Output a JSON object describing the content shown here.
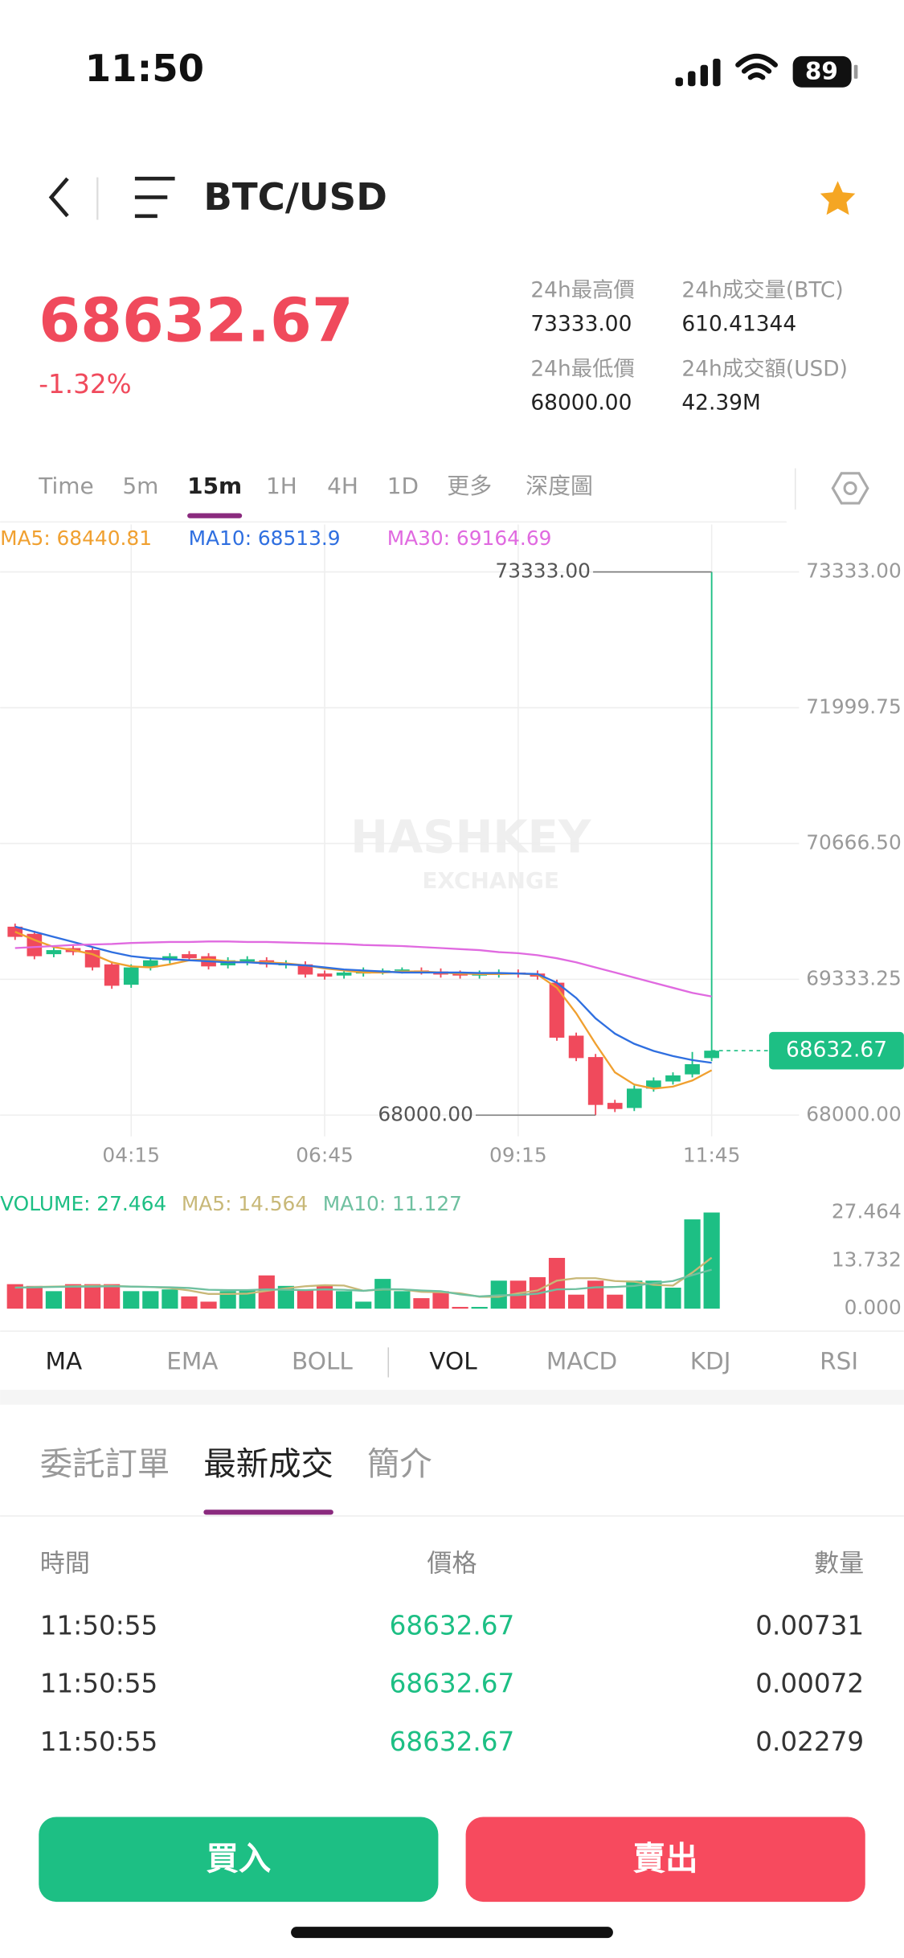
{
  "status_bar": {
    "time": "11:50",
    "battery": "89"
  },
  "header": {
    "title": "BTC/USD"
  },
  "ticker": {
    "price": "68632.67",
    "change": "-1.32%",
    "stats": [
      {
        "label": "24h最高價",
        "value": "73333.00"
      },
      {
        "label": "24h成交量(BTC)",
        "value": "610.41344"
      },
      {
        "label": "24h最低價",
        "value": "68000.00"
      },
      {
        "label": "24h成交額(USD)",
        "value": "42.39M"
      }
    ]
  },
  "timeframes": {
    "items": [
      "Time",
      "5m",
      "15m",
      "1H",
      "4H",
      "1D",
      "更多",
      "深度圖"
    ],
    "selected": 2
  },
  "watermark": {
    "brand": "HASHKEY",
    "sub": "EXCHANGE"
  },
  "chart_data": [
    {
      "type": "candlestick",
      "categories": [
        null,
        null,
        null,
        null,
        null,
        null,
        "04:15",
        null,
        null,
        null,
        null,
        null,
        null,
        null,
        null,
        null,
        "06:45",
        null,
        null,
        null,
        null,
        null,
        null,
        null,
        null,
        null,
        "09:15",
        null,
        null,
        null,
        null,
        null,
        null,
        null,
        null,
        null,
        "11:45"
      ],
      "open": [
        69850,
        69780,
        69580,
        69640,
        69620,
        69480,
        69280,
        69450,
        69520,
        69580,
        69560,
        69470,
        69500,
        69520,
        69470,
        69480,
        69390,
        69370,
        69390,
        69410,
        69420,
        69420,
        69410,
        69390,
        69370,
        69380,
        69400,
        69390,
        69300,
        68780,
        68570,
        68120,
        68070,
        68260,
        68330,
        68400,
        68560
      ],
      "high": [
        69880,
        69810,
        69650,
        69670,
        69650,
        69510,
        69480,
        69550,
        69590,
        69610,
        69590,
        69550,
        69560,
        69550,
        69520,
        69510,
        69420,
        69430,
        69450,
        69440,
        69450,
        69450,
        69440,
        69420,
        69420,
        69430,
        69430,
        69420,
        69330,
        68810,
        68600,
        68150,
        68290,
        68370,
        68420,
        68620,
        73333
      ],
      "low": [
        69720,
        69530,
        69550,
        69570,
        69420,
        69240,
        69250,
        69420,
        69490,
        69510,
        69430,
        69440,
        69470,
        69450,
        69440,
        69350,
        69330,
        69340,
        69360,
        69380,
        69390,
        69380,
        69350,
        69340,
        69340,
        69350,
        69350,
        69330,
        68730,
        68530,
        68000,
        68030,
        68040,
        68230,
        68300,
        68370,
        68530
      ],
      "close": [
        69750,
        69560,
        69620,
        69600,
        69450,
        69270,
        69450,
        69520,
        69560,
        69540,
        69460,
        69520,
        69530,
        69480,
        69490,
        69380,
        69360,
        69400,
        69420,
        69420,
        69430,
        69410,
        69380,
        69370,
        69390,
        69400,
        69380,
        69360,
        68760,
        68560,
        68100,
        68060,
        68260,
        68340,
        68390,
        68500,
        68632.67
      ],
      "up_color": "#1dbf84",
      "down_color": "#f04a5c",
      "series": [
        {
          "name": "MA5:",
          "color": "#f0a030",
          "values": [
            69800,
            69720,
            69650,
            69620,
            69580,
            69500,
            69460,
            69450,
            69480,
            69520,
            69530,
            69510,
            69500,
            69500,
            69490,
            69470,
            69440,
            69420,
            69400,
            69400,
            69410,
            69410,
            69400,
            69390,
            69385,
            69385,
            69390,
            69380,
            69250,
            69000,
            68700,
            68420,
            68300,
            68260,
            68280,
            68340,
            68440.81
          ]
        },
        {
          "name": "MA10:",
          "color": "#2f6fe0",
          "values": [
            69850,
            69800,
            69750,
            69700,
            69650,
            69600,
            69560,
            69540,
            69530,
            69520,
            69510,
            69500,
            69500,
            69490,
            69480,
            69470,
            69450,
            69430,
            69420,
            69410,
            69400,
            69400,
            69400,
            69400,
            69395,
            69395,
            69390,
            69385,
            69300,
            69150,
            68950,
            68800,
            68700,
            68630,
            68580,
            68540,
            68513.9
          ]
        },
        {
          "name": "MA30:",
          "color": "#e06ae0",
          "values": [
            69640,
            69650,
            69660,
            69670,
            69675,
            69680,
            69690,
            69695,
            69700,
            69700,
            69705,
            69705,
            69700,
            69700,
            69695,
            69690,
            69685,
            69680,
            69670,
            69665,
            69660,
            69650,
            69640,
            69630,
            69620,
            69600,
            69590,
            69570,
            69540,
            69500,
            69450,
            69400,
            69350,
            69300,
            69250,
            69200,
            69164.69
          ]
        }
      ],
      "ylim": [
        68000,
        73333
      ],
      "yticks": [
        {
          "value": 68000,
          "label": "68000.00"
        },
        {
          "value": 69333.25,
          "label": "69333.25"
        },
        {
          "value": 70666.5,
          "label": "70666.50"
        },
        {
          "value": 71999.75,
          "label": "71999.75"
        },
        {
          "value": 73333,
          "label": "73333.00"
        }
      ],
      "grid": true,
      "annotations": {
        "high": {
          "value": 73333,
          "label": "73333.00"
        },
        "low": {
          "value": 68000,
          "label": "68000.00"
        },
        "last": 68632.67
      }
    },
    {
      "type": "bar",
      "title": "VOLUME:",
      "values": [
        7,
        6.5,
        5,
        7,
        7,
        7,
        5,
        5,
        5.5,
        3.5,
        2,
        5,
        5.5,
        9.5,
        6.5,
        5.5,
        6.5,
        5,
        2,
        8.5,
        5,
        3,
        5,
        0.5,
        0.5,
        8,
        8,
        9,
        14.5,
        4,
        8,
        4,
        8,
        8,
        6,
        25.5,
        27.464
      ],
      "series": [
        {
          "name": "MA5:",
          "color": "#c8b878",
          "values": [
            6,
            6.2,
            6.3,
            6.4,
            6.5,
            6.5,
            6.3,
            6.2,
            5.9,
            5.2,
            4.2,
            4.2,
            4.3,
            5.1,
            5.8,
            6.4,
            6.7,
            6.6,
            5.1,
            5.5,
            5.5,
            4.8,
            4.7,
            4.4,
            3.4,
            3.4,
            4.4,
            5.2,
            8,
            8.7,
            8.7,
            7.9,
            7.7,
            6.8,
            6.6,
            10.3,
            14.564
          ]
        },
        {
          "name": "MA10:",
          "color": "#6fc0a0",
          "values": [
            6,
            6.1,
            6.2,
            6.3,
            6.3,
            6.4,
            6.3,
            6.2,
            6.1,
            5.9,
            5.4,
            5.3,
            5.3,
            5.5,
            5.4,
            5.3,
            5.5,
            5.4,
            5.1,
            5.6,
            5.5,
            5.2,
            5,
            4.1,
            3.5,
            3.8,
            3.9,
            4.3,
            5.5,
            5.6,
            6.1,
            6.2,
            6.5,
            7.3,
            7.9,
            9.6,
            11.127
          ]
        }
      ],
      "ylim": [
        0,
        27.464
      ],
      "yticks": [
        {
          "value": 0,
          "label": "0.000"
        },
        13.732,
        27.464
      ]
    }
  ],
  "indicators": {
    "items": [
      "MA",
      "EMA",
      "BOLL",
      "VOL",
      "MACD",
      "KDJ",
      "RSI"
    ],
    "selected": [
      0,
      3
    ]
  },
  "trades": {
    "tabs": [
      "委託訂單",
      "最新成交",
      "簡介"
    ],
    "selected": 1,
    "header": [
      "時間",
      "價格",
      "數量"
    ],
    "rows": [
      [
        "11:50:55",
        "68632.67",
        "0.00731"
      ],
      [
        "11:50:55",
        "68632.67",
        "0.00072"
      ],
      [
        "11:50:55",
        "68632.67",
        "0.02279"
      ]
    ]
  },
  "actions": {
    "buy": "買入",
    "sell": "賣出"
  }
}
